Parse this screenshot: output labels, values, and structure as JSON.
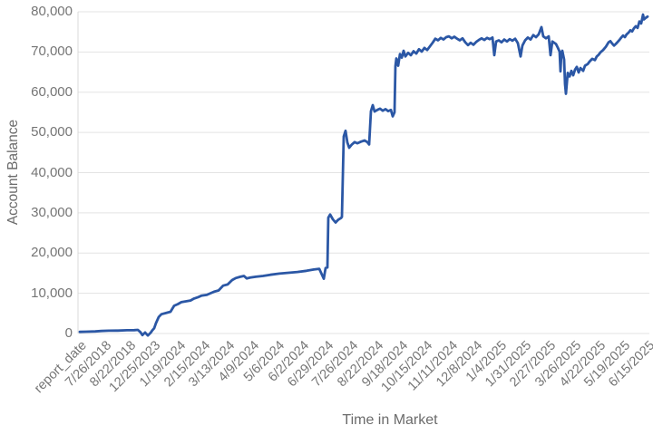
{
  "chart_data": {
    "type": "line",
    "title": "",
    "xlabel": "Time in Market",
    "ylabel": "Account Balance",
    "legend": "none",
    "grid": "horizontal",
    "ylim": [
      0,
      80000
    ],
    "y_tick_values": [
      0,
      10000,
      20000,
      30000,
      40000,
      50000,
      60000,
      70000,
      80000
    ],
    "y_tick_labels": [
      "0",
      "10,000",
      "20,000",
      "30,000",
      "40,000",
      "50,000",
      "60,000",
      "70,000",
      "80,000"
    ],
    "x_tick_labels": [
      "report_date",
      "7/26/2018",
      "8/22/2018",
      "12/25/2023",
      "1/19/2024",
      "2/15/2024",
      "3/13/2024",
      "4/9/2024",
      "5/6/2024",
      "6/2/2024",
      "6/29/2024",
      "7/26/2024",
      "8/22/2024",
      "9/18/2024",
      "10/15/2024",
      "11/11/2024",
      "12/8/2024",
      "1/4/2025",
      "1/31/2025",
      "2/27/2025",
      "3/26/2025",
      "4/22/2025",
      "5/19/2025",
      "6/15/2025"
    ],
    "colors": {
      "line": "#2b57a5",
      "grid": "#e3e3e3",
      "axis": "#d8d8d8",
      "tick_text": "#757575",
      "title_text": "#6b6b6b"
    },
    "series": [
      {
        "name": "Account Balance",
        "color": "#2b57a5",
        "x_unit": "fraction of x-axis (0 = report_date tick, 1 = 6/15/2025 tick)",
        "points": [
          [
            0.0,
            400
          ],
          [
            0.0112,
            450
          ],
          [
            0.0271,
            520
          ],
          [
            0.0383,
            620
          ],
          [
            0.051,
            700
          ],
          [
            0.067,
            720
          ],
          [
            0.0829,
            820
          ],
          [
            0.0957,
            830
          ],
          [
            0.1021,
            900
          ],
          [
            0.1069,
            300
          ],
          [
            0.11,
            -400
          ],
          [
            0.1148,
            250
          ],
          [
            0.1196,
            -500
          ],
          [
            0.1244,
            150
          ],
          [
            0.1276,
            800
          ],
          [
            0.1308,
            1300
          ],
          [
            0.134,
            2600
          ],
          [
            0.1388,
            4100
          ],
          [
            0.1435,
            4800
          ],
          [
            0.1515,
            5100
          ],
          [
            0.1595,
            5400
          ],
          [
            0.1659,
            6900
          ],
          [
            0.1722,
            7300
          ],
          [
            0.1786,
            7800
          ],
          [
            0.1866,
            8000
          ],
          [
            0.1946,
            8200
          ],
          [
            0.201,
            8700
          ],
          [
            0.2073,
            9000
          ],
          [
            0.2137,
            9400
          ],
          [
            0.2233,
            9600
          ],
          [
            0.2297,
            10000
          ],
          [
            0.2361,
            10400
          ],
          [
            0.244,
            10700
          ],
          [
            0.252,
            11900
          ],
          [
            0.26,
            12200
          ],
          [
            0.2679,
            13300
          ],
          [
            0.2743,
            13800
          ],
          [
            0.2823,
            14100
          ],
          [
            0.2887,
            14300
          ],
          [
            0.2935,
            13700
          ],
          [
            0.2999,
            13900
          ],
          [
            0.3094,
            14100
          ],
          [
            0.3222,
            14300
          ],
          [
            0.3349,
            14600
          ],
          [
            0.3509,
            14900
          ],
          [
            0.3668,
            15100
          ],
          [
            0.3828,
            15300
          ],
          [
            0.3987,
            15600
          ],
          [
            0.4115,
            15900
          ],
          [
            0.4211,
            16100
          ],
          [
            0.429,
            13600
          ],
          [
            0.4322,
            16300
          ],
          [
            0.4354,
            16400
          ],
          [
            0.437,
            28800
          ],
          [
            0.4402,
            29600
          ],
          [
            0.445,
            28400
          ],
          [
            0.4498,
            27600
          ],
          [
            0.4545,
            28300
          ],
          [
            0.4593,
            28700
          ],
          [
            0.4609,
            29000
          ],
          [
            0.4641,
            49000
          ],
          [
            0.4673,
            50400
          ],
          [
            0.4705,
            47500
          ],
          [
            0.4737,
            46200
          ],
          [
            0.4785,
            47000
          ],
          [
            0.4833,
            47600
          ],
          [
            0.488,
            47300
          ],
          [
            0.4944,
            47700
          ],
          [
            0.5008,
            48000
          ],
          [
            0.5056,
            47600
          ],
          [
            0.5088,
            47000
          ],
          [
            0.512,
            55300
          ],
          [
            0.5152,
            56800
          ],
          [
            0.5183,
            55200
          ],
          [
            0.5231,
            55600
          ],
          [
            0.5279,
            55900
          ],
          [
            0.5327,
            55400
          ],
          [
            0.5375,
            55800
          ],
          [
            0.5423,
            55300
          ],
          [
            0.5471,
            55600
          ],
          [
            0.5502,
            54000
          ],
          [
            0.5534,
            55000
          ],
          [
            0.555,
            66500
          ],
          [
            0.5566,
            68400
          ],
          [
            0.5598,
            66600
          ],
          [
            0.563,
            69500
          ],
          [
            0.5662,
            68600
          ],
          [
            0.5694,
            70300
          ],
          [
            0.5726,
            68900
          ],
          [
            0.5774,
            69800
          ],
          [
            0.5821,
            69200
          ],
          [
            0.5869,
            70200
          ],
          [
            0.5917,
            69600
          ],
          [
            0.5965,
            70700
          ],
          [
            0.6013,
            70100
          ],
          [
            0.6061,
            71000
          ],
          [
            0.6109,
            70500
          ],
          [
            0.6156,
            71400
          ],
          [
            0.6204,
            72300
          ],
          [
            0.6252,
            73300
          ],
          [
            0.63,
            72900
          ],
          [
            0.6348,
            73500
          ],
          [
            0.6396,
            73100
          ],
          [
            0.6443,
            73700
          ],
          [
            0.6491,
            73900
          ],
          [
            0.6539,
            73400
          ],
          [
            0.6587,
            73800
          ],
          [
            0.6635,
            73300
          ],
          [
            0.6683,
            72900
          ],
          [
            0.673,
            73400
          ],
          [
            0.6778,
            72400
          ],
          [
            0.6826,
            71700
          ],
          [
            0.6874,
            72300
          ],
          [
            0.6922,
            71800
          ],
          [
            0.697,
            72500
          ],
          [
            0.7018,
            73000
          ],
          [
            0.7065,
            73400
          ],
          [
            0.7113,
            73000
          ],
          [
            0.7161,
            73500
          ],
          [
            0.7209,
            73200
          ],
          [
            0.7257,
            73600
          ],
          [
            0.7289,
            69200
          ],
          [
            0.7321,
            72600
          ],
          [
            0.7368,
            72900
          ],
          [
            0.7416,
            72400
          ],
          [
            0.7464,
            73100
          ],
          [
            0.7512,
            72600
          ],
          [
            0.756,
            73200
          ],
          [
            0.7608,
            72800
          ],
          [
            0.7656,
            73300
          ],
          [
            0.7703,
            72200
          ],
          [
            0.7751,
            68900
          ],
          [
            0.7783,
            71600
          ],
          [
            0.7831,
            72900
          ],
          [
            0.7879,
            73600
          ],
          [
            0.7927,
            73100
          ],
          [
            0.7974,
            74200
          ],
          [
            0.8022,
            73700
          ],
          [
            0.807,
            74400
          ],
          [
            0.8118,
            76200
          ],
          [
            0.815,
            73900
          ],
          [
            0.8198,
            73400
          ],
          [
            0.8246,
            73900
          ],
          [
            0.8278,
            69200
          ],
          [
            0.8309,
            72600
          ],
          [
            0.8341,
            72300
          ],
          [
            0.8373,
            72000
          ],
          [
            0.8405,
            71100
          ],
          [
            0.8437,
            70100
          ],
          [
            0.8453,
            65200
          ],
          [
            0.8469,
            69800
          ],
          [
            0.8485,
            70300
          ],
          [
            0.8517,
            68100
          ],
          [
            0.8533,
            62000
          ],
          [
            0.8549,
            59600
          ],
          [
            0.8581,
            64800
          ],
          [
            0.8612,
            63900
          ],
          [
            0.8644,
            65300
          ],
          [
            0.8676,
            64200
          ],
          [
            0.8708,
            65600
          ],
          [
            0.874,
            66300
          ],
          [
            0.8772,
            64900
          ],
          [
            0.8804,
            66000
          ],
          [
            0.8852,
            65300
          ],
          [
            0.8884,
            66600
          ],
          [
            0.8931,
            67000
          ],
          [
            0.8963,
            67600
          ],
          [
            0.9011,
            68300
          ],
          [
            0.9059,
            68000
          ],
          [
            0.9091,
            68900
          ],
          [
            0.9123,
            69300
          ],
          [
            0.9155,
            69900
          ],
          [
            0.9202,
            70500
          ],
          [
            0.925,
            71300
          ],
          [
            0.9298,
            72400
          ],
          [
            0.933,
            72700
          ],
          [
            0.9362,
            72100
          ],
          [
            0.9394,
            71600
          ],
          [
            0.9426,
            72000
          ],
          [
            0.9458,
            72500
          ],
          [
            0.949,
            73000
          ],
          [
            0.9522,
            73600
          ],
          [
            0.9553,
            74100
          ],
          [
            0.9585,
            73700
          ],
          [
            0.9617,
            74400
          ],
          [
            0.9649,
            74800
          ],
          [
            0.9681,
            75400
          ],
          [
            0.9713,
            75100
          ],
          [
            0.9745,
            75900
          ],
          [
            0.9777,
            76400
          ],
          [
            0.9809,
            76000
          ],
          [
            0.9841,
            77600
          ],
          [
            0.9872,
            77100
          ],
          [
            0.9904,
            79300
          ],
          [
            0.992,
            78100
          ],
          [
            0.9952,
            78500
          ],
          [
            0.9984,
            78800
          ]
        ]
      }
    ]
  }
}
